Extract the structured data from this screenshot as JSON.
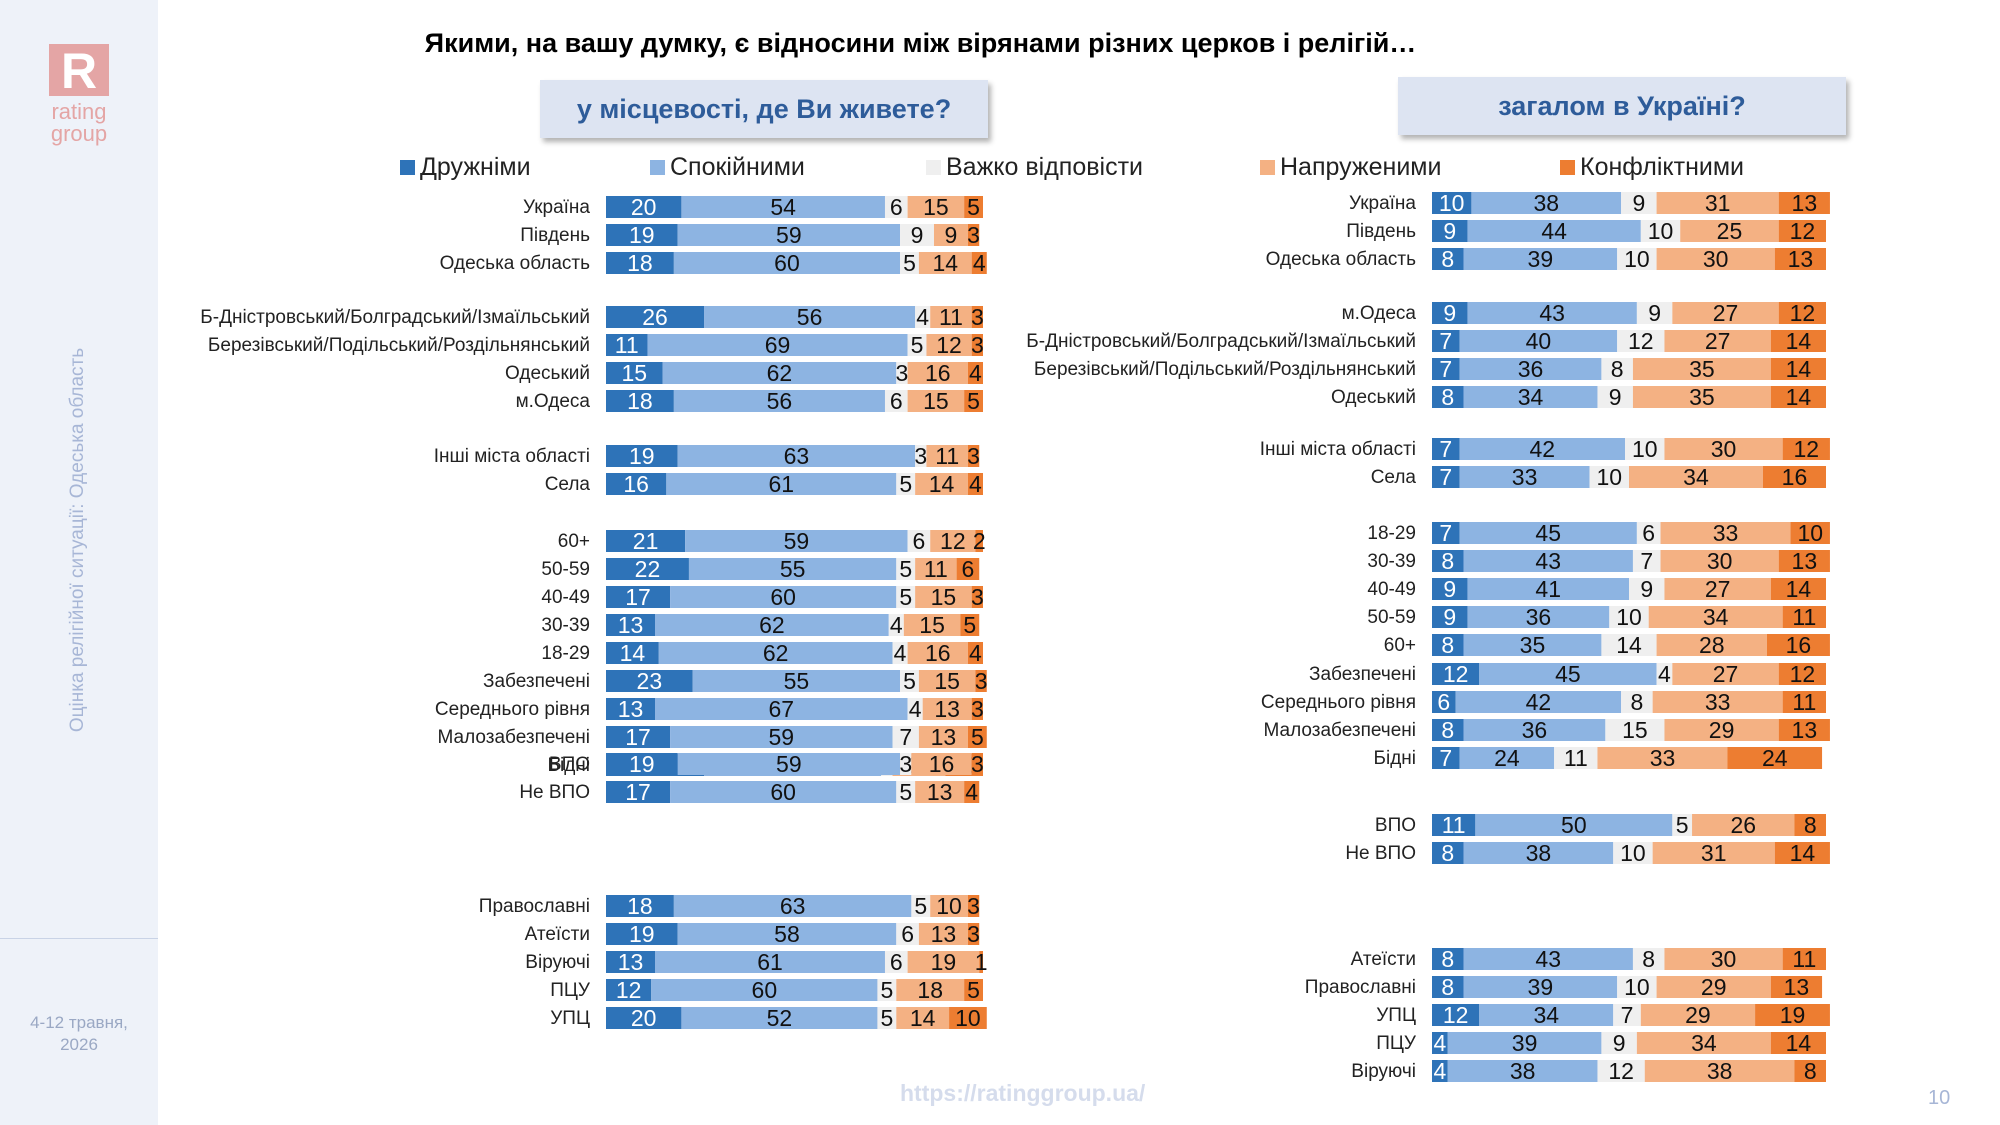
{
  "brand": {
    "logo_letter": "R",
    "logo_text_1": "rating",
    "logo_text_2": "group",
    "accent": "#e4a5a5"
  },
  "sidebar": {
    "vertical_text": "Оцінка релігійної ситуації: Одеська область",
    "date_1": "4-12 травня,",
    "date_2": "2026"
  },
  "title": "Якими, на вашу думку, є відносини між вірянами різних церков і релігій…",
  "footer": {
    "url": "https://ratinggroup.ua/",
    "page": "10"
  },
  "colors": {
    "friendly": "#2e73b8",
    "calm": "#8db4e2",
    "hard": "#efefef",
    "tense": "#f4b183",
    "conflict": "#ed7d31"
  },
  "legend": [
    "Дружніми",
    "Спокійними",
    "Важко відповісти",
    "Напруженими",
    "Конфліктними"
  ],
  "chart_data": [
    {
      "type": "bar",
      "stacked": "horizontal",
      "title": "у місцевості, де Ви живете?",
      "xlim": [
        0,
        100
      ],
      "series_names": [
        "Дружніми",
        "Спокійними",
        "Важко відповісти",
        "Напруженими",
        "Конфліктними"
      ],
      "groups": [
        [
          {
            "label": "Україна",
            "values": [
              20,
              54,
              6,
              15,
              5
            ]
          },
          {
            "label": "Південь",
            "values": [
              19,
              59,
              9,
              9,
              3
            ]
          },
          {
            "label": "Одеська область",
            "values": [
              18,
              60,
              5,
              14,
              4
            ]
          }
        ],
        [
          {
            "label": "Б-Дністровський/Болградський/Ізмаїльський",
            "values": [
              26,
              56,
              4,
              11,
              3
            ]
          },
          {
            "label": "Березівський/Подільський/Роздільнянський",
            "values": [
              11,
              69,
              5,
              12,
              3
            ]
          },
          {
            "label": "Одеський",
            "values": [
              15,
              62,
              3,
              16,
              4
            ]
          },
          {
            "label": "м.Одеса",
            "values": [
              18,
              56,
              6,
              15,
              5
            ]
          }
        ],
        [
          {
            "label": "Інші міста області",
            "values": [
              19,
              63,
              3,
              11,
              3
            ]
          },
          {
            "label": "Села",
            "values": [
              16,
              61,
              5,
              14,
              4
            ]
          }
        ],
        [
          {
            "label": "60+",
            "values": [
              21,
              59,
              6,
              12,
              2
            ]
          },
          {
            "label": "50-59",
            "values": [
              22,
              55,
              5,
              11,
              6
            ]
          },
          {
            "label": "40-49",
            "values": [
              17,
              60,
              5,
              15,
              3
            ]
          },
          {
            "label": "30-39",
            "values": [
              13,
              62,
              4,
              15,
              5
            ]
          },
          {
            "label": "18-29",
            "values": [
              14,
              62,
              4,
              16,
              4
            ]
          }
        ],
        [
          {
            "label": "Забезпечені",
            "values": [
              23,
              55,
              5,
              15,
              3
            ]
          },
          {
            "label": "Середнього рівня",
            "values": [
              13,
              67,
              4,
              13,
              3
            ]
          },
          {
            "label": "Малозабезпечені",
            "values": [
              17,
              59,
              7,
              13,
              5
            ]
          },
          {
            "label": "Бідні",
            "values": [
              26,
              47,
              3,
              14,
              10
            ]
          }
        ],
        [
          {
            "label": "ВПО",
            "values": [
              19,
              59,
              3,
              16,
              3
            ]
          },
          {
            "label": "Не ВПО",
            "values": [
              17,
              60,
              5,
              13,
              4
            ]
          }
        ],
        [
          {
            "label": "Православні",
            "values": [
              18,
              63,
              5,
              10,
              3
            ]
          },
          {
            "label": "Атеїсти",
            "values": [
              19,
              58,
              6,
              13,
              3
            ]
          },
          {
            "label": "Віруючі",
            "values": [
              13,
              61,
              6,
              19,
              1
            ]
          },
          {
            "label": "ПЦУ",
            "values": [
              12,
              60,
              5,
              18,
              5
            ]
          },
          {
            "label": "УПЦ",
            "values": [
              20,
              52,
              5,
              14,
              10
            ]
          }
        ]
      ]
    },
    {
      "type": "bar",
      "stacked": "horizontal",
      "title": "загалом в Україні?",
      "xlim": [
        0,
        100
      ],
      "series_names": [
        "Дружніми",
        "Спокійними",
        "Важко відповісти",
        "Напруженими",
        "Конфліктними"
      ],
      "groups": [
        [
          {
            "label": "Україна",
            "values": [
              10,
              38,
              9,
              31,
              13
            ]
          },
          {
            "label": "Південь",
            "values": [
              9,
              44,
              10,
              25,
              12
            ]
          },
          {
            "label": "Одеська область",
            "values": [
              8,
              39,
              10,
              30,
              13
            ]
          }
        ],
        [
          {
            "label": "м.Одеса",
            "values": [
              9,
              43,
              9,
              27,
              12
            ]
          },
          {
            "label": "Б-Дністровський/Болградський/Ізмаїльський",
            "values": [
              7,
              40,
              12,
              27,
              14
            ]
          },
          {
            "label": "Березівський/Подільський/Роздільнянський",
            "values": [
              7,
              36,
              8,
              35,
              14
            ]
          },
          {
            "label": "Одеський",
            "values": [
              8,
              34,
              9,
              35,
              14
            ]
          }
        ],
        [
          {
            "label": "Інші міста області",
            "values": [
              7,
              42,
              10,
              30,
              12
            ]
          },
          {
            "label": "Села",
            "values": [
              7,
              33,
              10,
              34,
              16
            ]
          }
        ],
        [
          {
            "label": "18-29",
            "values": [
              7,
              45,
              6,
              33,
              10
            ]
          },
          {
            "label": "30-39",
            "values": [
              8,
              43,
              7,
              30,
              13
            ]
          },
          {
            "label": "40-49",
            "values": [
              9,
              41,
              9,
              27,
              14
            ]
          },
          {
            "label": "50-59",
            "values": [
              9,
              36,
              10,
              34,
              11
            ]
          },
          {
            "label": "60+",
            "values": [
              8,
              35,
              14,
              28,
              16
            ]
          }
        ],
        [
          {
            "label": "Забезпечені",
            "values": [
              12,
              45,
              4,
              27,
              12
            ]
          },
          {
            "label": "Середнього рівня",
            "values": [
              6,
              42,
              8,
              33,
              11
            ]
          },
          {
            "label": "Малозабезпечені",
            "values": [
              8,
              36,
              15,
              29,
              13
            ]
          },
          {
            "label": "Бідні",
            "values": [
              7,
              24,
              11,
              33,
              24
            ]
          }
        ],
        [
          {
            "label": "ВПО",
            "values": [
              11,
              50,
              5,
              26,
              8
            ]
          },
          {
            "label": "Не ВПО",
            "values": [
              8,
              38,
              10,
              31,
              14
            ]
          }
        ],
        [
          {
            "label": "Атеїсти",
            "values": [
              8,
              43,
              8,
              30,
              11
            ]
          },
          {
            "label": "Православні",
            "values": [
              8,
              39,
              10,
              29,
              13
            ]
          },
          {
            "label": "УПЦ",
            "values": [
              12,
              34,
              7,
              29,
              19
            ]
          },
          {
            "label": "ПЦУ",
            "values": [
              4,
              39,
              9,
              34,
              14
            ]
          },
          {
            "label": "Віруючі",
            "values": [
              4,
              38,
              12,
              38,
              8
            ]
          }
        ]
      ]
    }
  ]
}
